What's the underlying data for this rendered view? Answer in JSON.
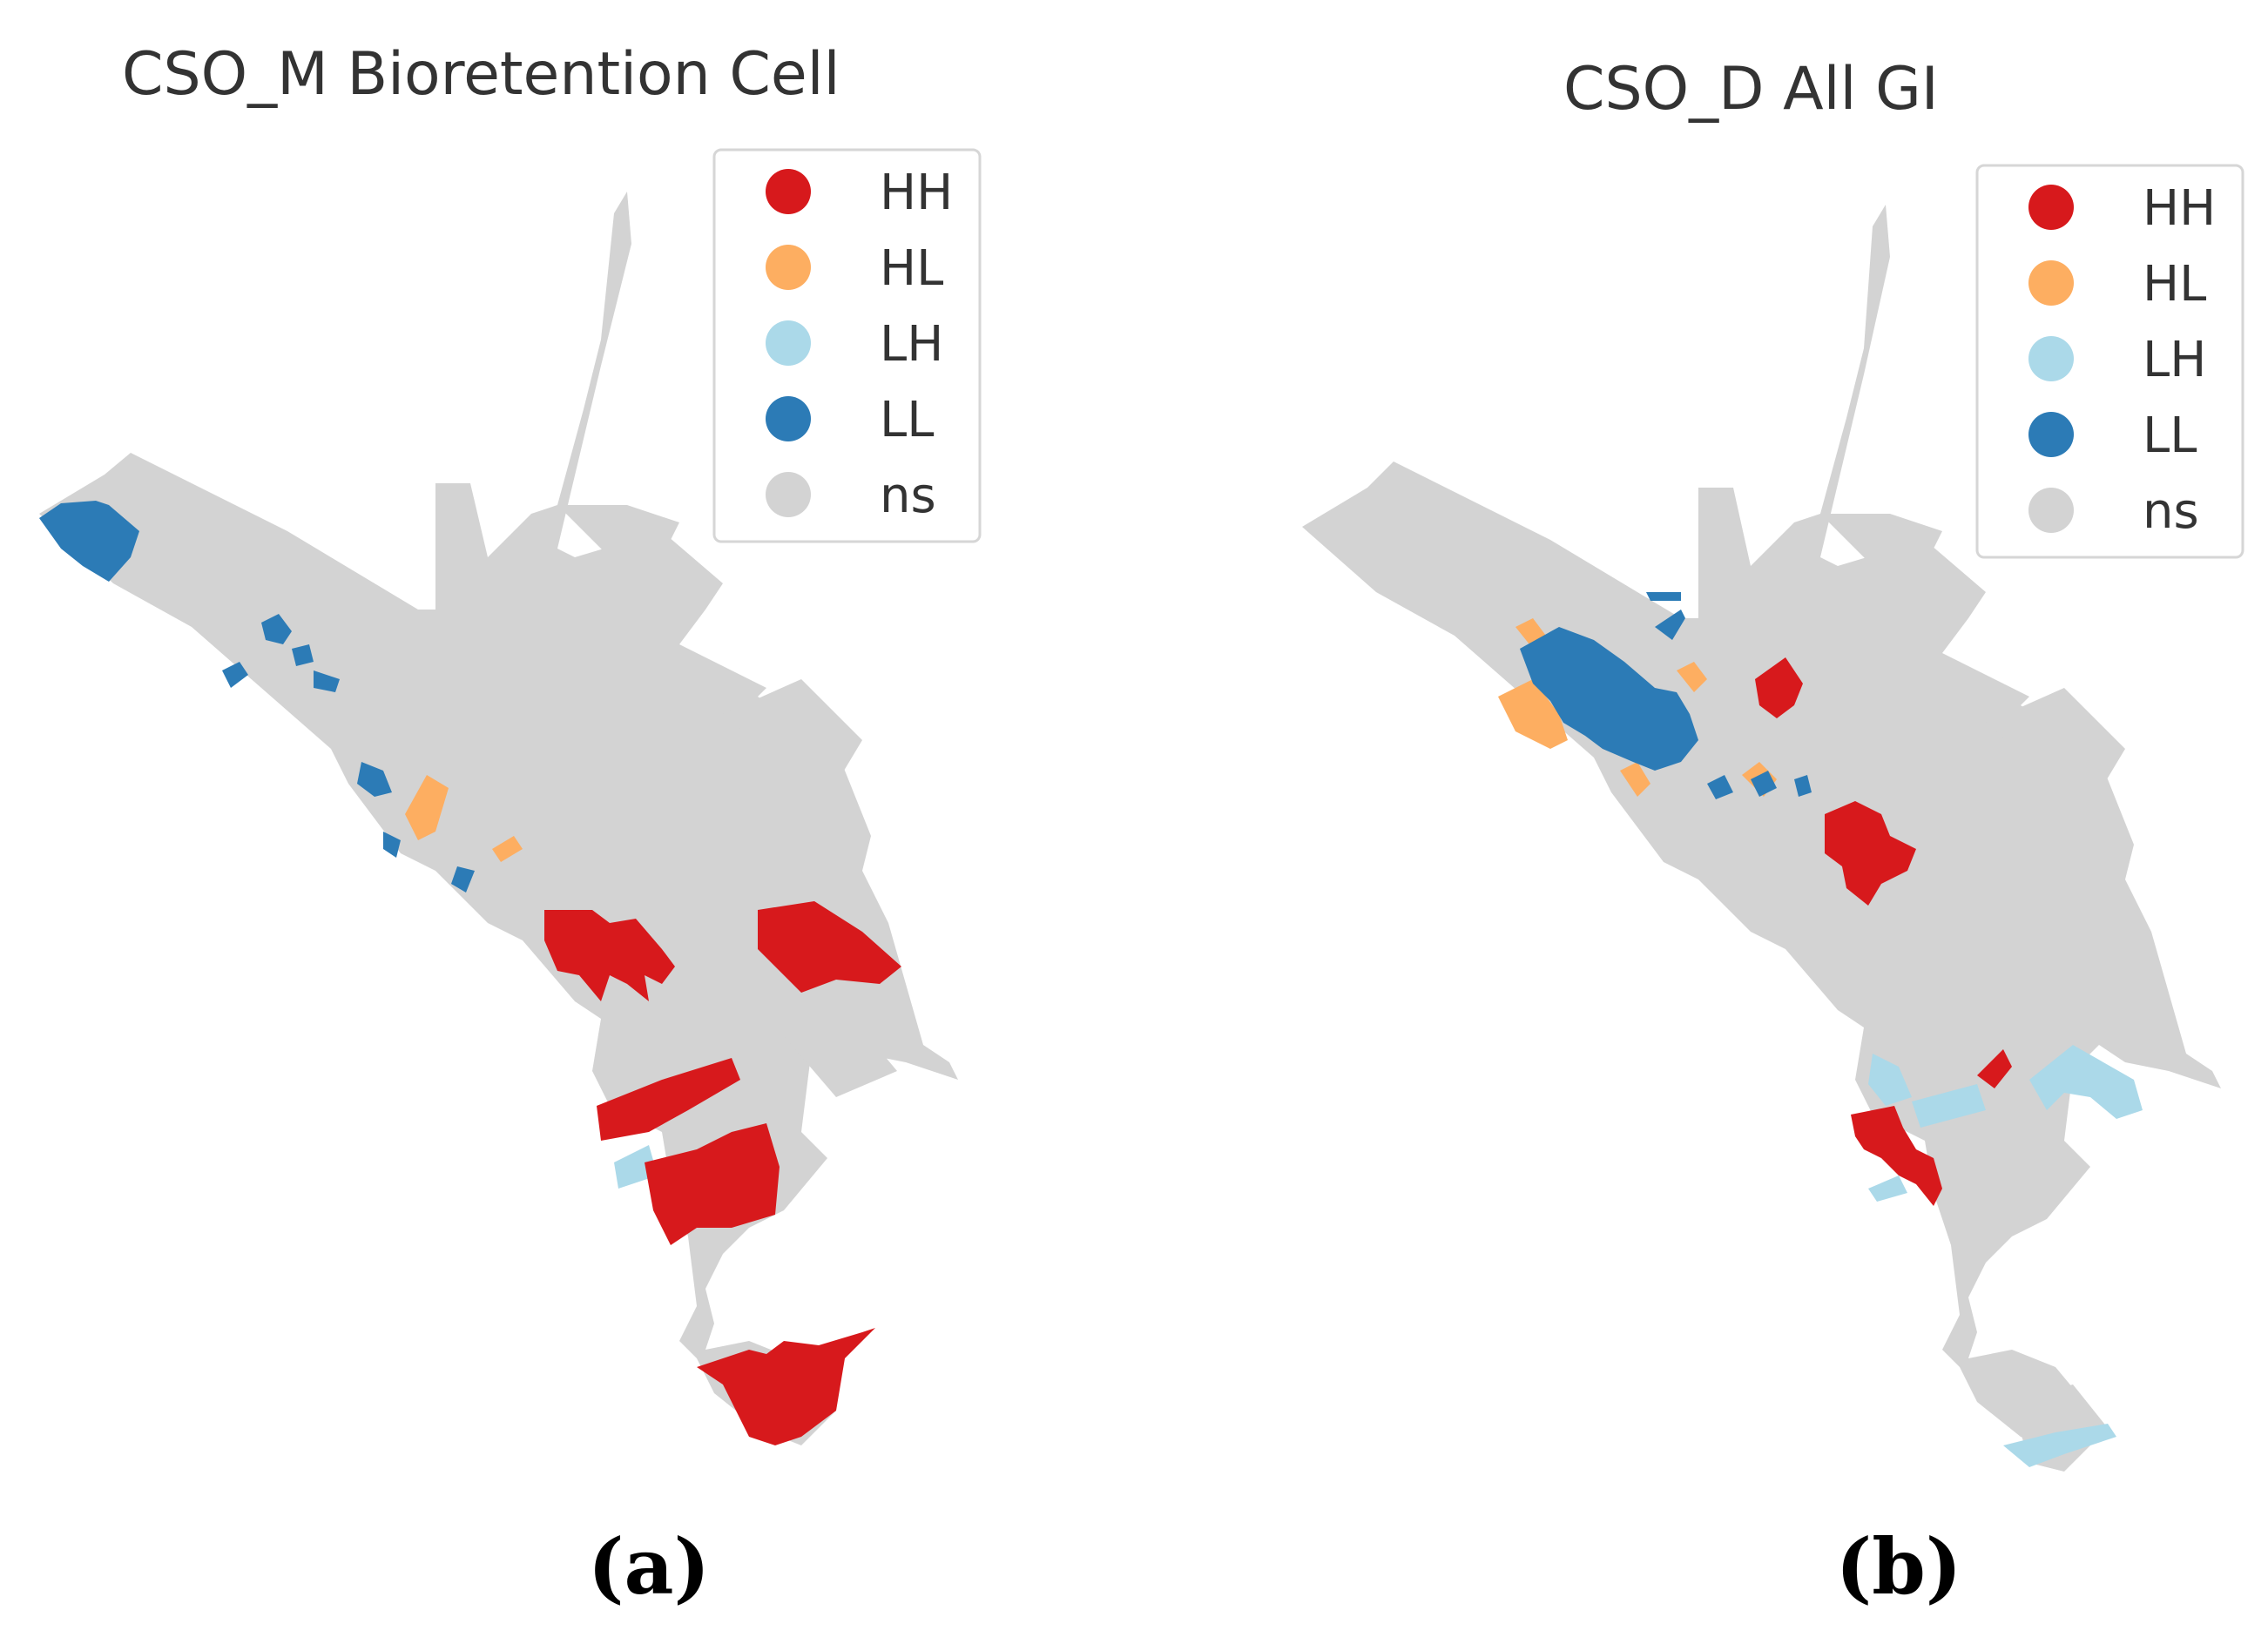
{
  "colors": {
    "HH": "#d7191c",
    "HL": "#fdae61",
    "LH": "#abd9e9",
    "LL": "#2c7bb6",
    "ns": "#d3d3d3"
  },
  "panels": [
    {
      "id": "a",
      "title": "CSO_M Bioretention Cell",
      "label": "(a)",
      "legend": [
        {
          "code": "HH",
          "label": "HH",
          "color": "#d7191c"
        },
        {
          "code": "HL",
          "label": "HL",
          "color": "#fdae61"
        },
        {
          "code": "LH",
          "label": "LH",
          "color": "#abd9e9"
        },
        {
          "code": "LL",
          "label": "LL",
          "color": "#2c7bb6"
        },
        {
          "code": "ns",
          "label": "ns",
          "color": "#d3d3d3"
        }
      ]
    },
    {
      "id": "b",
      "title": "CSO_D All GI",
      "label": "(b)",
      "legend": [
        {
          "code": "HH",
          "label": "HH",
          "color": "#d7191c"
        },
        {
          "code": "HL",
          "label": "HL",
          "color": "#fdae61"
        },
        {
          "code": "LH",
          "label": "LH",
          "color": "#abd9e9"
        },
        {
          "code": "LL",
          "label": "LL",
          "color": "#2c7bb6"
        },
        {
          "code": "ns",
          "label": "ns",
          "color": "#d3d3d3"
        }
      ]
    }
  ]
}
